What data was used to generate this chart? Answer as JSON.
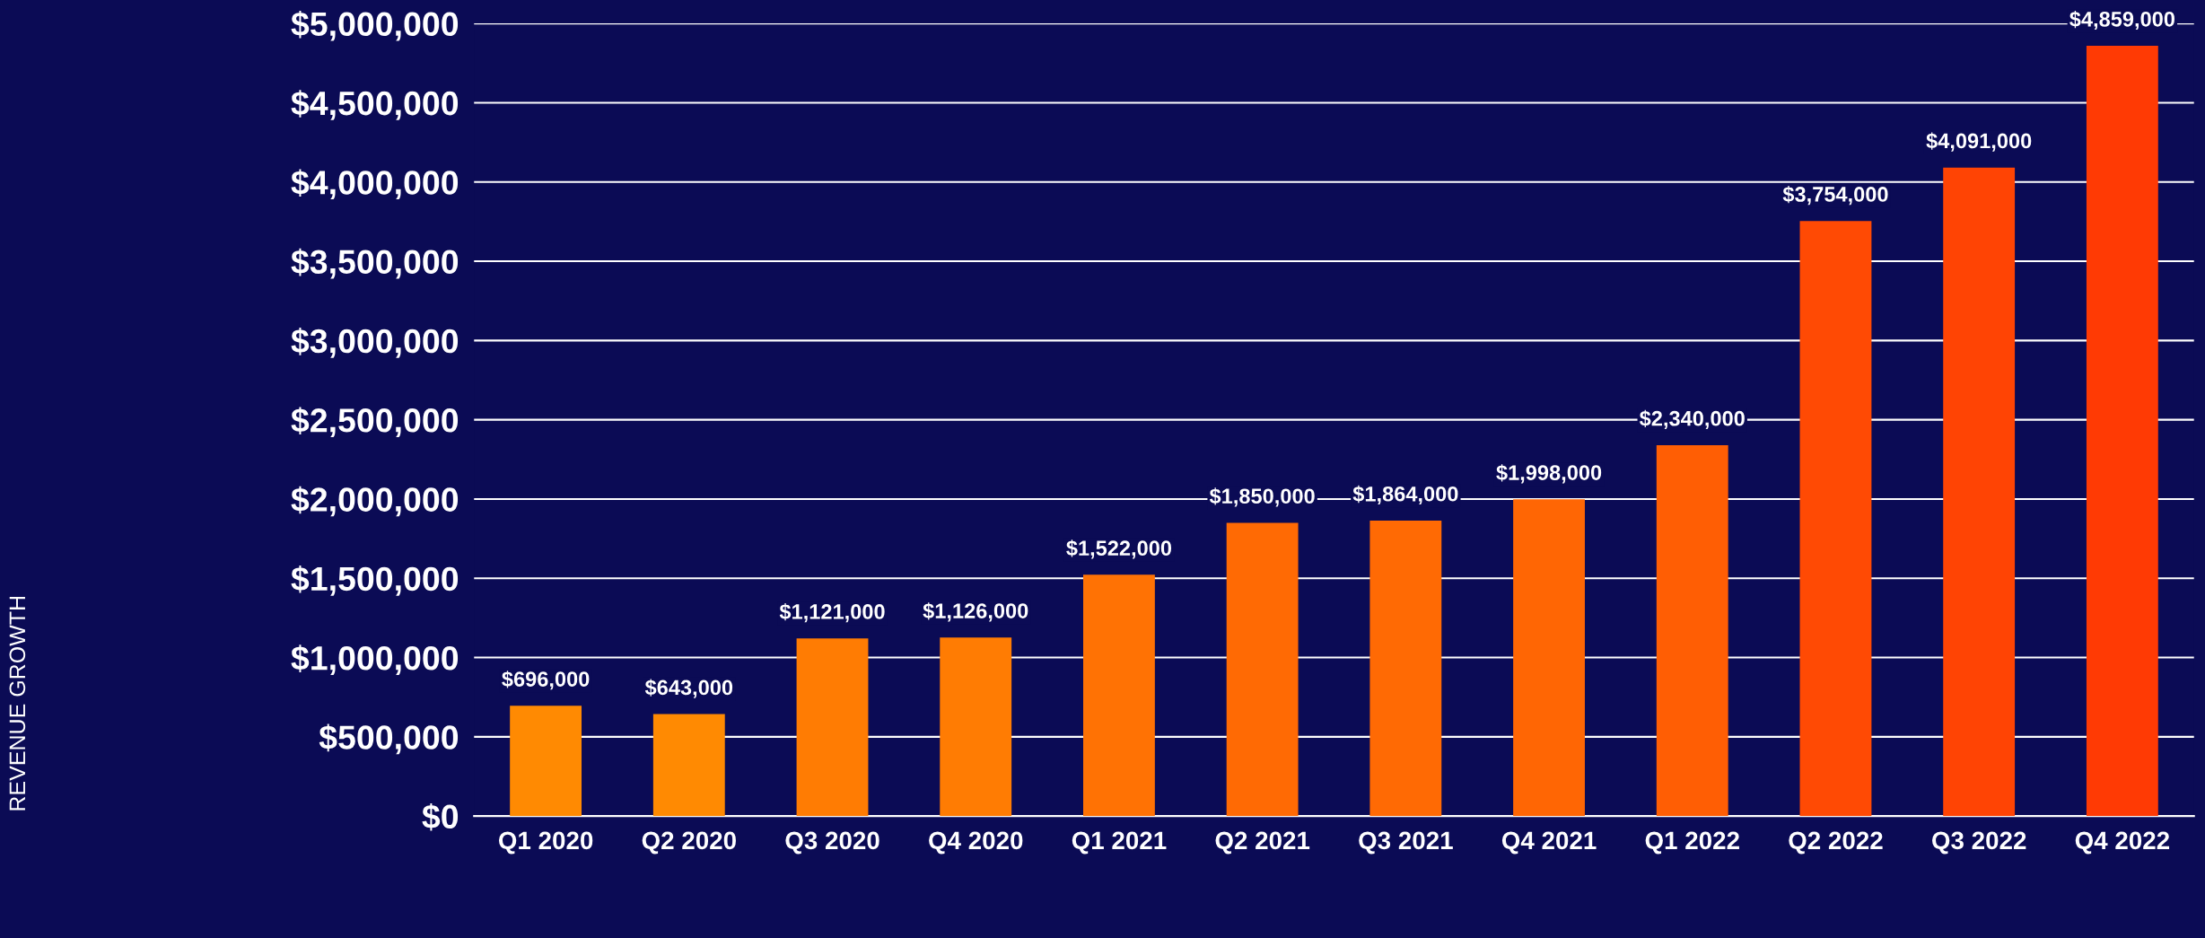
{
  "chart_data": {
    "type": "bar",
    "annotations": [
      "REVENUE GROWTH"
    ],
    "categories": [
      "Q1 2020",
      "Q2 2020",
      "Q3 2020",
      "Q4 2020",
      "Q1 2021",
      "Q2 2021",
      "Q3 2021",
      "Q4 2021",
      "Q1 2022",
      "Q2 2022",
      "Q3 2022",
      "Q4 2022"
    ],
    "values": [
      696000,
      643000,
      1121000,
      1126000,
      1522000,
      1850000,
      1864000,
      1998000,
      2340000,
      3754000,
      4091000,
      4859000
    ],
    "value_labels": [
      "$696,000",
      "$643,000",
      "$1,121,000",
      "$1,126,000",
      "$1,522,000",
      "$1,850,000",
      "$1,864,000",
      "$1,998,000",
      "$2,340,000",
      "$3,754,000",
      "$4,091,000",
      "$4,859,000"
    ],
    "colors": [
      "#ff8a02",
      "#ff8a02",
      "#ff7c03",
      "#ff7c03",
      "#ff7204",
      "#ff6a04",
      "#ff6a04",
      "#ff6604",
      "#ff5e04",
      "#ff4a04",
      "#ff4404",
      "#ff3a04"
    ],
    "ylim": [
      0,
      5000000
    ],
    "yticks": [
      {
        "value": 0,
        "label": "$0"
      },
      {
        "value": 500000,
        "label": "$500,000"
      },
      {
        "value": 1000000,
        "label": "$1,000,000"
      },
      {
        "value": 1500000,
        "label": "$1,500,000"
      },
      {
        "value": 2000000,
        "label": "$2,000,000"
      },
      {
        "value": 2500000,
        "label": "$2,500,000"
      },
      {
        "value": 3000000,
        "label": "$3,000,000"
      },
      {
        "value": 3500000,
        "label": "$3,500,000"
      },
      {
        "value": 4000000,
        "label": "$4,000,000"
      },
      {
        "value": 4500000,
        "label": "$4,500,000"
      },
      {
        "value": 5000000,
        "label": "$5,000,000"
      }
    ],
    "grid": "y",
    "legend": false
  }
}
